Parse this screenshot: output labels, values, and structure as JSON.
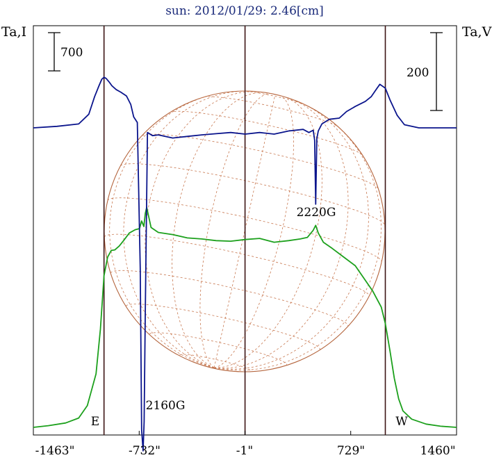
{
  "chart_data": {
    "type": "line",
    "title": "sun: 2012/01/29: 2.46[cm]",
    "left_axis_label": "Ta,I",
    "right_axis_label": "Ta,V",
    "x_ticks": [
      "-1463\"",
      "-732\"",
      "-1\"",
      "729\"",
      "1460\""
    ],
    "x_tick_values": [
      -1463,
      -732,
      -1,
      729,
      1460
    ],
    "xlim": [
      -1463,
      1460
    ],
    "limb_markers": [
      {
        "label": "E",
        "x": -975
      },
      {
        "label": "W",
        "x": 968
      }
    ],
    "center_line_x": -1,
    "scale_bars": [
      {
        "axis": "I",
        "label": "700",
        "value": 700
      },
      {
        "axis": "V",
        "label": "200",
        "value": 200
      }
    ],
    "annotations": [
      {
        "text": "2160G",
        "x": -700
      },
      {
        "text": "2220G",
        "x": 487
      }
    ],
    "colors": {
      "intensity": "#1ca01c",
      "polarization": "#0a148c",
      "disk": "#b4643c",
      "grid": "#c87850",
      "frame": "#000000",
      "vlines": "#3c1414",
      "title": "#1a2a7a"
    },
    "series": [
      {
        "name": "I",
        "x": [
          -1463,
          -1360,
          -1240,
          -1150,
          -1090,
          -1030,
          -1000,
          -975,
          -950,
          -925,
          -900,
          -870,
          -840,
          -800,
          -760,
          -730,
          -715,
          -700,
          -690,
          -680,
          -650,
          -600,
          -500,
          -400,
          -300,
          -200,
          -100,
          0,
          100,
          200,
          300,
          380,
          430,
          470,
          487,
          505,
          540,
          600,
          680,
          760,
          820,
          880,
          940,
          968,
          1000,
          1030,
          1060,
          1090,
          1150,
          1250,
          1350,
          1460
        ],
        "y": [
          0,
          30,
          80,
          170,
          400,
          980,
          1800,
          2780,
          3120,
          3240,
          3250,
          3320,
          3420,
          3560,
          3620,
          3640,
          3780,
          3680,
          3920,
          4030,
          3660,
          3570,
          3530,
          3470,
          3450,
          3420,
          3410,
          3440,
          3460,
          3390,
          3420,
          3450,
          3480,
          3610,
          3700,
          3560,
          3390,
          3280,
          3120,
          2960,
          2730,
          2500,
          2200,
          1900,
          1400,
          900,
          520,
          300,
          150,
          60,
          20,
          0
        ]
      },
      {
        "name": "V",
        "x": [
          -1463,
          -1300,
          -1150,
          -1080,
          -1040,
          -1010,
          -990,
          -975,
          -960,
          -940,
          -920,
          -890,
          -860,
          -820,
          -790,
          -770,
          -745,
          -725,
          -715,
          -705,
          -698,
          -690,
          -675,
          -640,
          -600,
          -500,
          -400,
          -300,
          -200,
          -100,
          0,
          100,
          200,
          300,
          400,
          440,
          470,
          480,
          487,
          495,
          505,
          530,
          580,
          650,
          700,
          760,
          830,
          870,
          900,
          930,
          968,
          1000,
          1050,
          1100,
          1200,
          1300,
          1460
        ],
        "y": [
          0,
          4,
          10,
          35,
          80,
          108,
          125,
          130,
          127,
          118,
          108,
          98,
          92,
          82,
          60,
          28,
          14,
          -360,
          -775,
          -830,
          -755,
          -470,
          -12,
          -20,
          -18,
          -26,
          -22,
          -18,
          -15,
          -12,
          -16,
          -12,
          -16,
          -8,
          -4,
          -12,
          -6,
          -32,
          -196,
          -28,
          -8,
          10,
          22,
          25,
          42,
          55,
          68,
          80,
          96,
          112,
          102,
          72,
          32,
          8,
          0,
          0,
          0
        ]
      }
    ]
  }
}
